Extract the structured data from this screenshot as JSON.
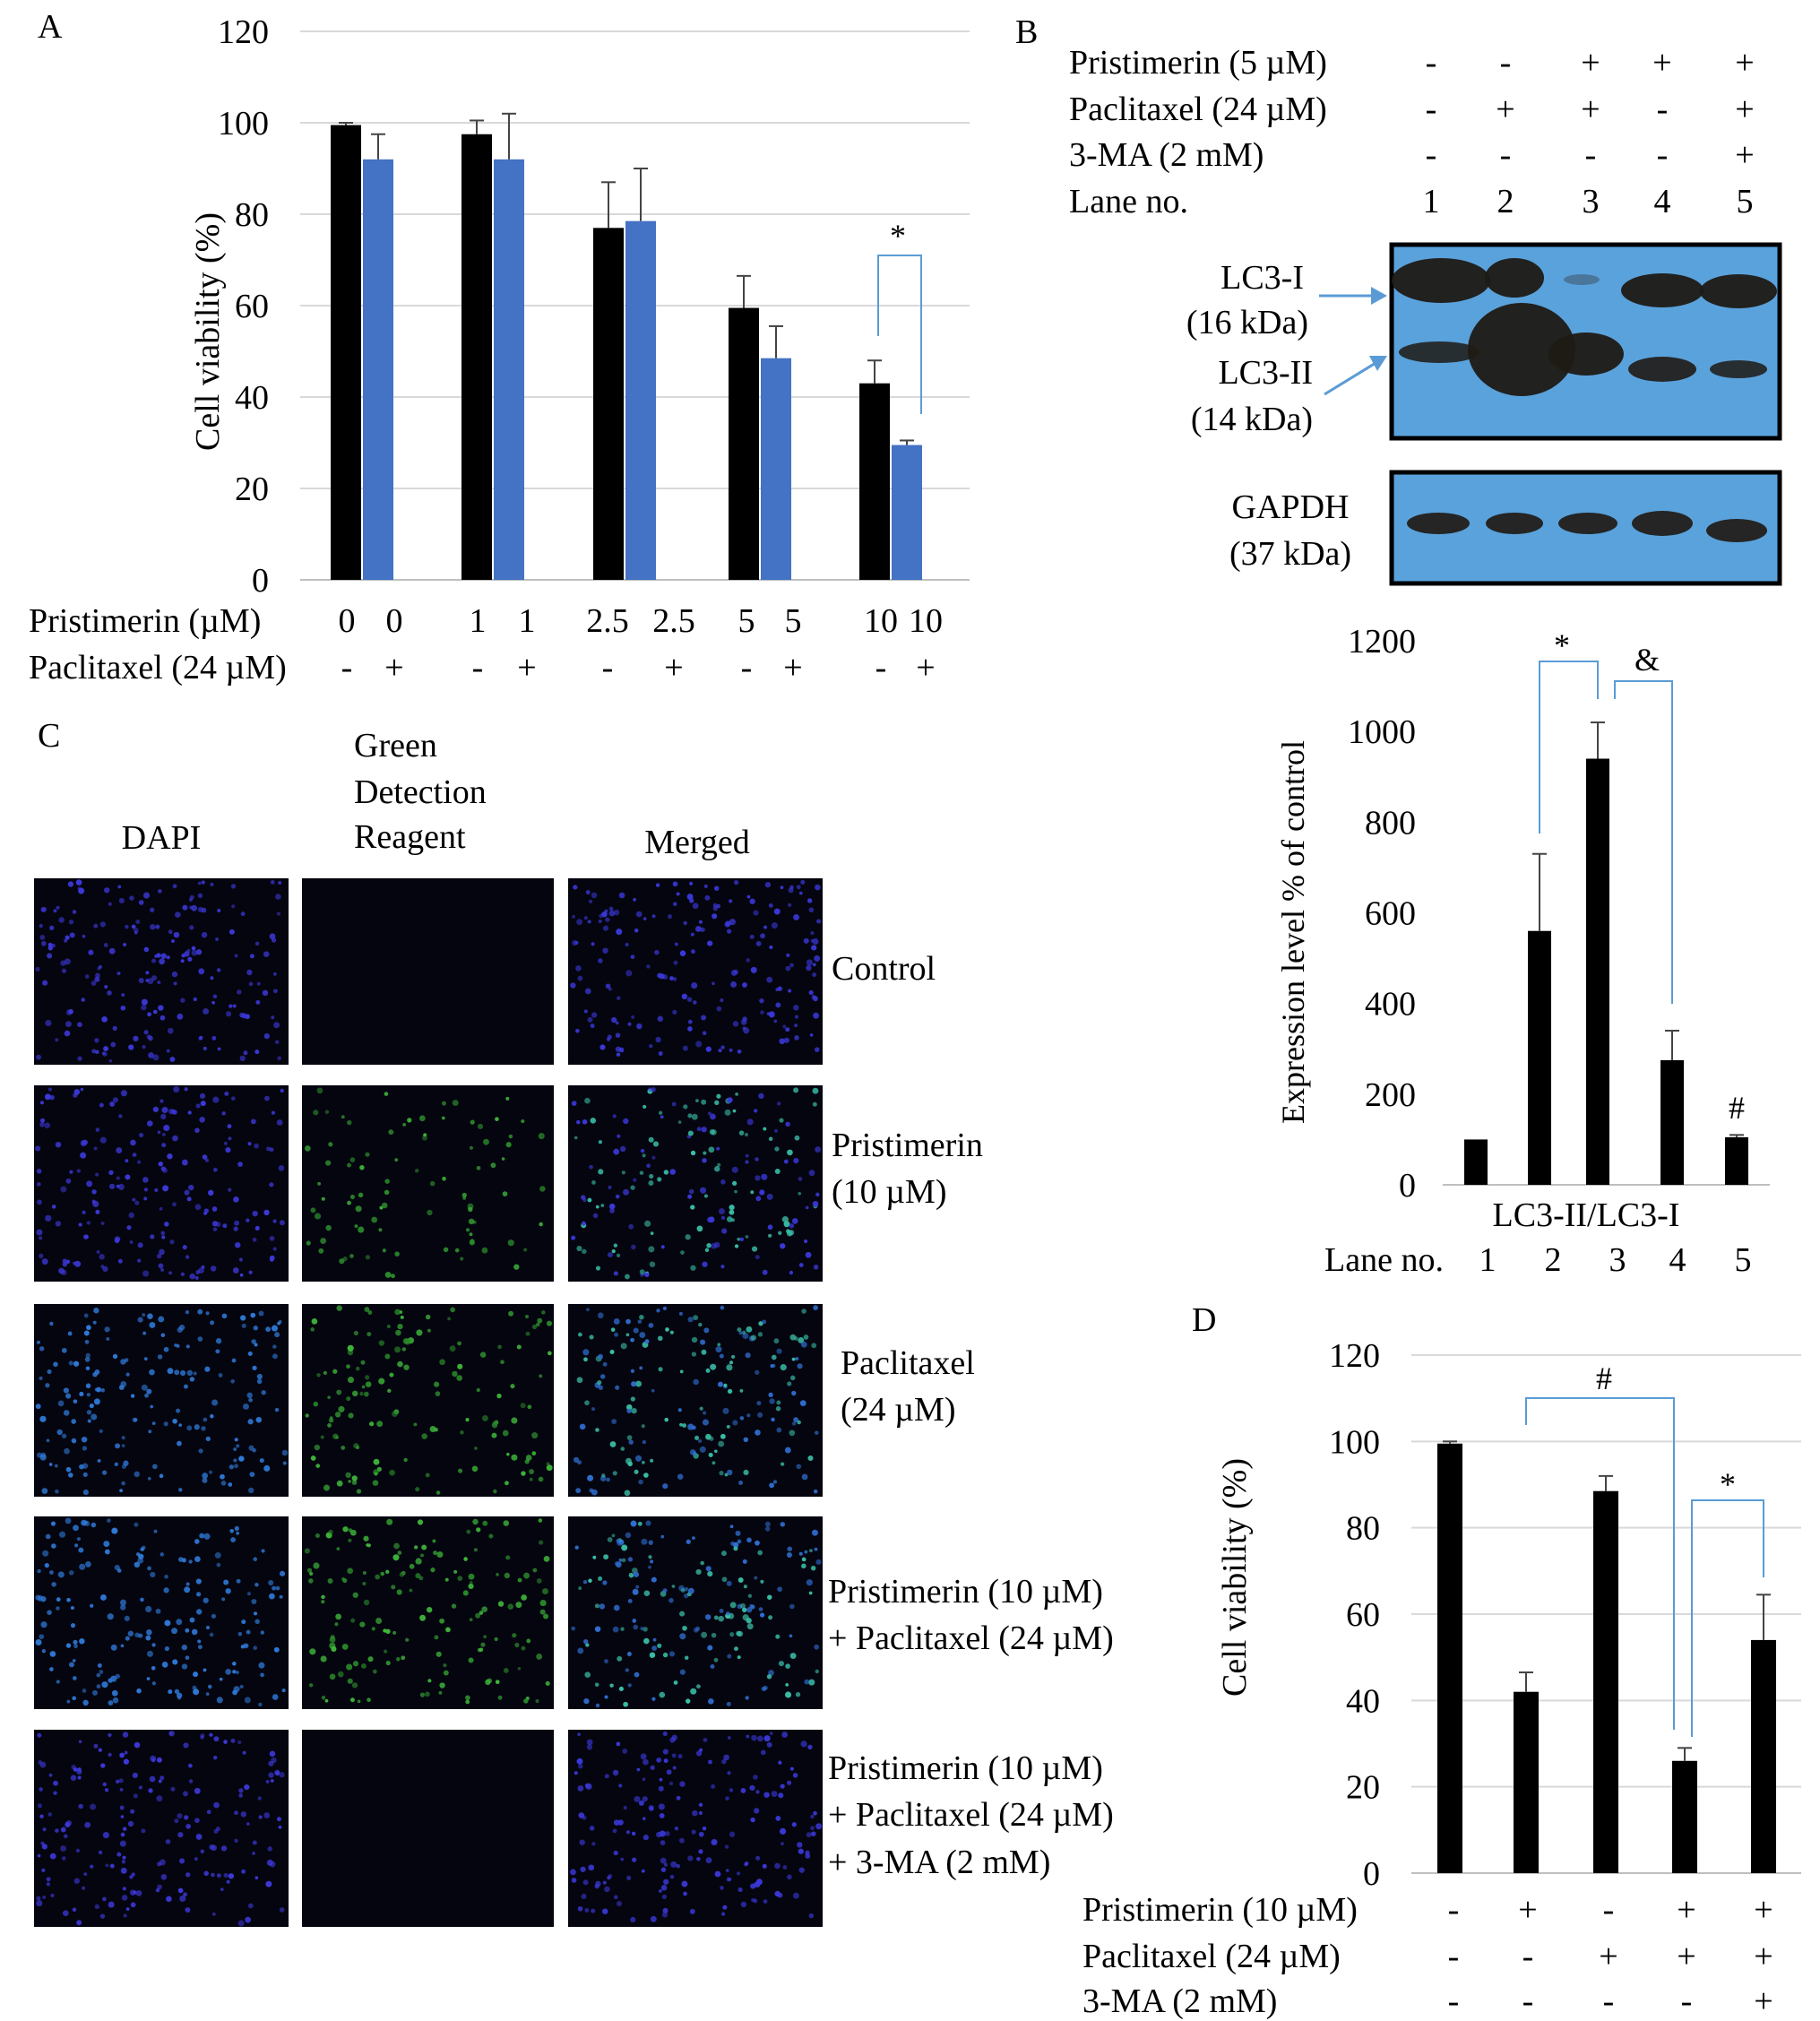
{
  "panels": {
    "A": {
      "letter": "A",
      "ylabel": "Cell viability (%)",
      "row1_label": "Pristimerin (µM)",
      "row2_label": "Paclitaxel (24 µM)",
      "row1": [
        "0",
        "0",
        "1",
        "1",
        "2.5",
        "2.5",
        "5",
        "5",
        "10",
        "10"
      ],
      "row2": [
        "-",
        "+",
        "-",
        "+",
        "-",
        "+",
        "-",
        "+",
        "-",
        "+"
      ],
      "sig": "*"
    },
    "B": {
      "letter": "B",
      "conditions": [
        {
          "label": "Pristimerin (5 µM)",
          "values": [
            "-",
            "-",
            "+",
            "+",
            "+"
          ]
        },
        {
          "label": "Paclitaxel (24 µM)",
          "values": [
            "-",
            "+",
            "+",
            "-",
            "+"
          ]
        },
        {
          "label": "3-MA (2 mM)",
          "values": [
            "-",
            "-",
            "-",
            "-",
            "+"
          ]
        },
        {
          "label": "Lane no.",
          "values": [
            "1",
            "2",
            "3",
            "4",
            "5"
          ]
        }
      ],
      "blot_labels": {
        "lc3i": "LC3-I",
        "lc3i_kda": "(16 kDa)",
        "lc3ii": "LC3-II",
        "lc3ii_kda": "(14 kDa)",
        "gapdh": "GAPDH",
        "gapdh_kda": "(37 kDa)"
      },
      "ylabel": "Expression level % of control",
      "xlabel": "LC3-II/LC3-I",
      "lane_label": "Lane no.",
      "lanes": [
        "1",
        "2",
        "3",
        "4",
        "5"
      ],
      "sig_star": "*",
      "sig_amp": "&",
      "sig_hash": "#"
    },
    "C": {
      "letter": "C",
      "col_dapi": "DAPI",
      "col_green_1": "Green",
      "col_green_2": "Detection",
      "col_green_3": "Reagent",
      "col_merged": "Merged",
      "rows": [
        {
          "line1": "Control",
          "line2": "",
          "line3": ""
        },
        {
          "line1": "Pristimerin",
          "line2": "(10 µM)",
          "line3": ""
        },
        {
          "line1": "Paclitaxel",
          "line2": "(24 µM)",
          "line3": ""
        },
        {
          "line1": "Pristimerin (10 µM)",
          "line2": "+ Paclitaxel (24 µM)",
          "line3": ""
        },
        {
          "line1": "Pristimerin (10 µM)",
          "line2": "+ Paclitaxel (24 µM)",
          "line3": "+ 3-MA (2 mM)"
        }
      ]
    },
    "D": {
      "letter": "D",
      "ylabel": "Cell viability (%)",
      "conditions": [
        {
          "label": "Pristimerin (10 µM)",
          "values": [
            "-",
            "+",
            "-",
            "+",
            "+"
          ]
        },
        {
          "label": "Paclitaxel (24 µM)",
          "values": [
            "-",
            "-",
            "+",
            "+",
            "+"
          ]
        },
        {
          "label": "3-MA (2 mM)",
          "values": [
            "-",
            "-",
            "-",
            "-",
            "+"
          ]
        }
      ],
      "sig_hash": "#",
      "sig_star": "*"
    }
  },
  "colors": {
    "black_bar": "#000000",
    "blue_bar": "#4472c4",
    "bracket": "#5b9bd5",
    "blot_bg": "#5aa2dc",
    "grid": "#d9d9d9"
  },
  "chart_data": [
    {
      "panel": "A",
      "type": "bar",
      "categories": [
        "0",
        "1",
        "2.5",
        "5",
        "10"
      ],
      "ylim": [
        0,
        120
      ],
      "yticks": [
        0,
        20,
        40,
        60,
        80,
        100,
        120
      ],
      "grid": true,
      "series": [
        {
          "color": "#000000",
          "values": [
            99.5,
            97.5,
            77,
            59.5,
            43
          ],
          "errors": [
            0.5,
            3,
            10,
            7,
            5
          ]
        },
        {
          "color": "#4472c4",
          "values": [
            92,
            92,
            78.5,
            48.5,
            29.5
          ],
          "errors": [
            5.5,
            10,
            11.5,
            7,
            1
          ]
        }
      ]
    },
    {
      "panel": "B",
      "type": "bar",
      "categories": [
        "1",
        "2",
        "3",
        "4",
        "5"
      ],
      "ylim": [
        0,
        1200
      ],
      "yticks": [
        0,
        200,
        400,
        600,
        800,
        1000,
        1200
      ],
      "grid": false,
      "values": [
        100,
        560,
        940,
        275,
        105
      ],
      "errors": [
        0,
        170,
        80,
        65,
        5
      ]
    },
    {
      "panel": "D",
      "type": "bar",
      "categories": [
        "1",
        "2",
        "3",
        "4",
        "5"
      ],
      "ylim": [
        0,
        120
      ],
      "yticks": [
        0,
        20,
        40,
        60,
        80,
        100,
        120
      ],
      "grid": true,
      "values": [
        99.5,
        42,
        88.5,
        26,
        54
      ],
      "errors": [
        0.5,
        4.5,
        3.5,
        3,
        10.5
      ]
    }
  ]
}
